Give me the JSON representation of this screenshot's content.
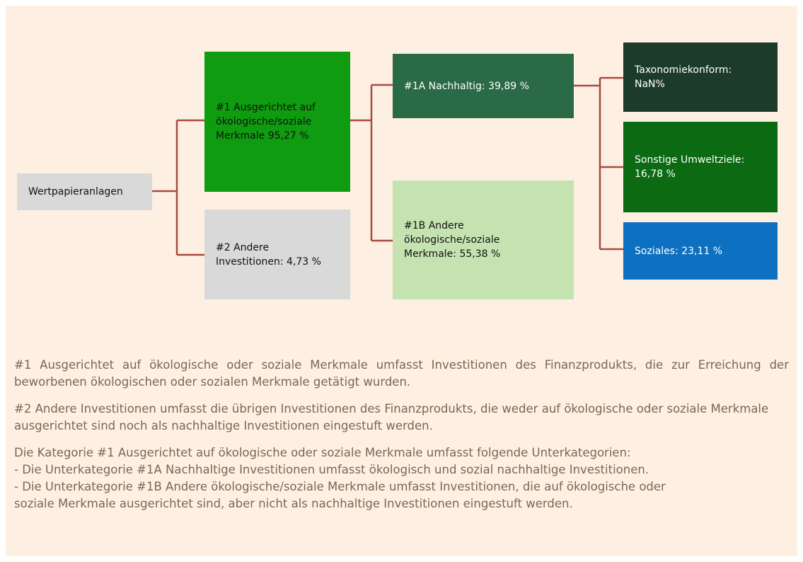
{
  "nodes": [
    {
      "id": "wertpapier",
      "label": "Wertpapieranlagen"
    },
    {
      "id": "n1",
      "label": "#1 Ausgerichtet auf ökologische/soziale Merkmale 95,27 %"
    },
    {
      "id": "n2",
      "label": "#2 Andere Investitionen: 4,73 %"
    },
    {
      "id": "n1a",
      "label": "#1A Nachhaltig: 39,89 %"
    },
    {
      "id": "n1b",
      "label": "#1B Andere ökologische/soziale Merkmale: 55,38 %"
    },
    {
      "id": "tax",
      "label": "Taxonomiekonform: NaN%"
    },
    {
      "id": "sonst",
      "label": "Sonstige Umweltziele: 16,78 %"
    },
    {
      "id": "soz",
      "label": "Soziales: 23,11 %"
    }
  ],
  "paragraphs": [
    "#1 Ausgerichtet auf ökologische oder soziale Merkmale umfasst Investitionen des Finanzprodukts, die zur Erreichung der beworbenen ökologischen oder sozialen Merkmale getätigt wurden.",
    "#2 Andere Investitionen umfasst die übrigen Investitionen des Finanzprodukts, die weder auf ökologische oder soziale Merkmale ausgerichtet sind noch als nachhaltige Investitionen eingestuft werden."
  ],
  "categories_note": [
    "Die Kategorie #1 Ausgerichtet auf ökologische oder soziale Merkmale umfasst folgende Unterkategorien:",
    "- Die Unterkategorie #1A Nachhaltige Investitionen umfasst ökologisch und sozial nachhaltige Investitionen.",
    "- Die Unterkategorie #1B Andere ökologische/soziale Merkmale umfasst Investitionen, die auf ökologische oder soziale Merkmale ausgerichtet sind, aber nicht als nachhaltige Investitionen eingestuft werden."
  ]
}
